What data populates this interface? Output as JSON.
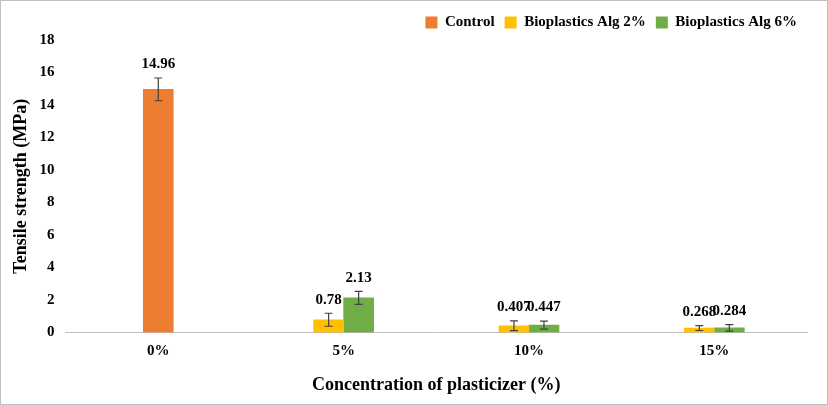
{
  "chart_data": {
    "type": "bar",
    "x_label": "Concentration of plasticizer (%)",
    "y_label": "Tensile strength (MPa)",
    "categories": [
      "0%",
      "5%",
      "10%",
      "15%"
    ],
    "series": [
      {
        "name": "Control",
        "color": "#ed7d31",
        "values": [
          14.96,
          null,
          null,
          null
        ],
        "errors": [
          0.7,
          null,
          null,
          null
        ]
      },
      {
        "name": "Bioplastics Alg 2%",
        "color": "#ffc000",
        "values": [
          null,
          0.78,
          0.407,
          0.268
        ],
        "errors": [
          null,
          0.4,
          0.3,
          0.15
        ]
      },
      {
        "name": "Bioplastics Alg 6%",
        "color": "#70ad47",
        "values": [
          null,
          2.13,
          0.447,
          0.284
        ],
        "errors": [
          null,
          0.4,
          0.25,
          0.2
        ]
      }
    ],
    "ylim": [
      0,
      18
    ],
    "yticks": [
      0,
      2,
      4,
      6,
      8,
      10,
      12,
      14,
      16,
      18
    ],
    "grid": false,
    "legend": "top-right",
    "data_labels": true
  }
}
